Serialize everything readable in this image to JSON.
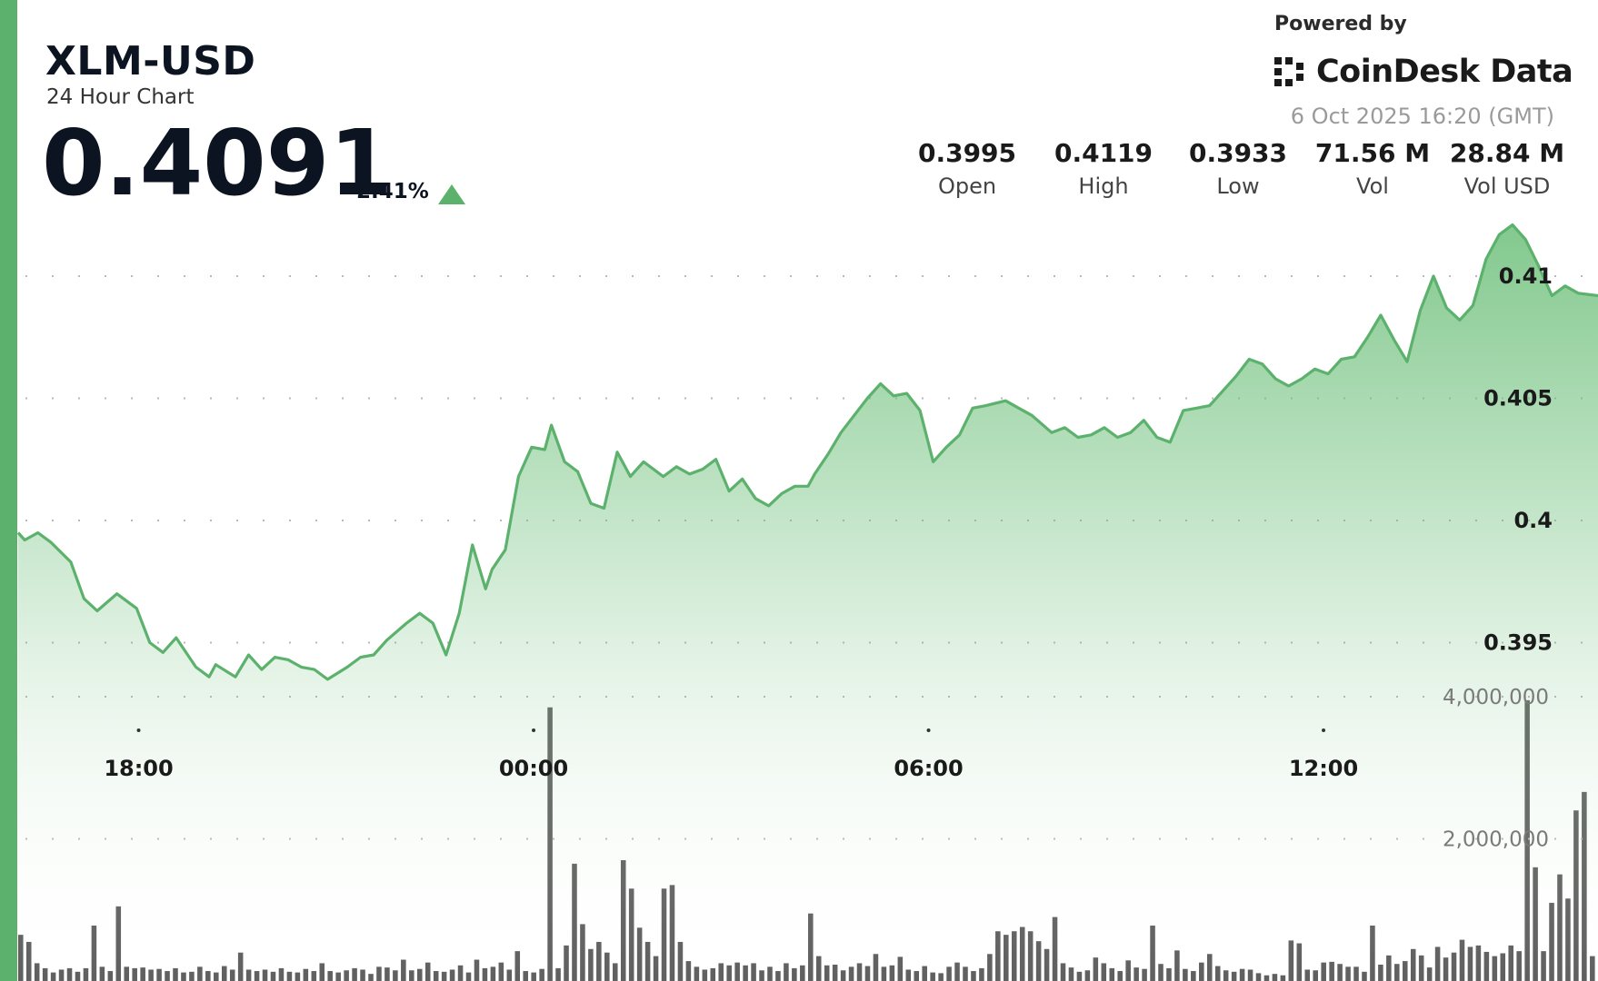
{
  "header": {
    "symbol": "XLM-USD",
    "subtitle": "24 Hour Chart",
    "price": "0.4091",
    "change_pct": "2.41%",
    "change_direction_icon": "triangle-up-icon"
  },
  "branding": {
    "powered_by": "Powered by",
    "name": "CoinDesk Data",
    "logo_icon": "coindesk-logo-icon",
    "timestamp": "6 Oct 2025 16:20 (GMT)"
  },
  "stats": [
    {
      "value": "0.3995",
      "label": "Open"
    },
    {
      "value": "0.4119",
      "label": "High"
    },
    {
      "value": "0.3933",
      "label": "Low"
    },
    {
      "value": "71.56 M",
      "label": "Vol"
    },
    {
      "value": "28.84 M",
      "label": "Vol USD"
    }
  ],
  "colors": {
    "accent": "#5cb16d",
    "line": "#5cb16d",
    "fill_top": "#6dbf7a",
    "volume_bar": "#606060",
    "text": "#0d1421"
  },
  "chart_data": [
    {
      "type": "area",
      "title": "",
      "xlabel": "",
      "ylabel": "",
      "x_tick_labels": [
        "18:00",
        "00:00",
        "06:00",
        "12:00"
      ],
      "x_tick_hours": [
        1.83,
        7.83,
        13.83,
        19.83
      ],
      "y_tick_labels": [
        "0.41",
        "0.405",
        "0.4",
        "0.395"
      ],
      "y_ticks": [
        0.41,
        0.405,
        0.4,
        0.395
      ],
      "ylim": [
        0.3898,
        0.4157
      ],
      "xlim_hours": [
        0,
        24
      ],
      "grid": true,
      "series": [
        {
          "x_hours": [
            0.0,
            0.1,
            0.3,
            0.5,
            0.8,
            1.0,
            1.2,
            1.5,
            1.8,
            2.0,
            2.2,
            2.4,
            2.7,
            2.9,
            3.0,
            3.3,
            3.5,
            3.7,
            3.9,
            4.1,
            4.3,
            4.5,
            4.7,
            5.0,
            5.2,
            5.4,
            5.6,
            5.9,
            6.1,
            6.3,
            6.5,
            6.7,
            6.9,
            7.1,
            7.2,
            7.4,
            7.6,
            7.8,
            8.0,
            8.1,
            8.3,
            8.5,
            8.7,
            8.9,
            9.1,
            9.3,
            9.5,
            9.8,
            10.0,
            10.2,
            10.4,
            10.6,
            10.8,
            11.0,
            11.2,
            11.4,
            11.6,
            11.8,
            12.0,
            12.1,
            12.3,
            12.5,
            12.7,
            12.9,
            13.1,
            13.3,
            13.5,
            13.7,
            13.9,
            14.1,
            14.3,
            14.5,
            14.7,
            15.0,
            15.2,
            15.4,
            15.7,
            15.9,
            16.1,
            16.3,
            16.5,
            16.7,
            16.9,
            17.1,
            17.3,
            17.5,
            17.7,
            17.9,
            18.1,
            18.3,
            18.5,
            18.7,
            18.9,
            19.1,
            19.3,
            19.5,
            19.7,
            19.9,
            20.1,
            20.3,
            20.5,
            20.7,
            20.9,
            21.1,
            21.3,
            21.5,
            21.7,
            21.9,
            22.1,
            22.3,
            22.5,
            22.7,
            22.9,
            23.1,
            23.3,
            23.5,
            23.7,
            24.0
          ],
          "values": [
            0.3995,
            0.3992,
            0.3995,
            0.3991,
            0.3983,
            0.3968,
            0.3963,
            0.397,
            0.3964,
            0.395,
            0.3946,
            0.3952,
            0.394,
            0.3936,
            0.3941,
            0.3936,
            0.3945,
            0.3939,
            0.3944,
            0.3943,
            0.394,
            0.3939,
            0.3935,
            0.394,
            0.3944,
            0.3945,
            0.3951,
            0.3958,
            0.3962,
            0.3958,
            0.3945,
            0.3962,
            0.399,
            0.3972,
            0.398,
            0.3988,
            0.4018,
            0.403,
            0.4029,
            0.4039,
            0.4024,
            0.402,
            0.4007,
            0.4005,
            0.4028,
            0.4018,
            0.4024,
            0.4018,
            0.4022,
            0.4019,
            0.4021,
            0.4025,
            0.4012,
            0.4017,
            0.4009,
            0.4006,
            0.4011,
            0.4014,
            0.4014,
            0.4019,
            0.4027,
            0.4036,
            0.4043,
            0.405,
            0.4056,
            0.4051,
            0.4052,
            0.4045,
            0.4024,
            0.403,
            0.4035,
            0.4046,
            0.4047,
            0.4049,
            0.4046,
            0.4043,
            0.4036,
            0.4038,
            0.4034,
            0.4035,
            0.4038,
            0.4034,
            0.4036,
            0.4041,
            0.4034,
            0.4032,
            0.4045,
            0.4046,
            0.4047,
            0.4053,
            0.4059,
            0.4066,
            0.4064,
            0.4058,
            0.4055,
            0.4058,
            0.4062,
            0.406,
            0.4066,
            0.4067,
            0.4075,
            0.4084,
            0.4074,
            0.4065,
            0.4086,
            0.41,
            0.4087,
            0.4082,
            0.4088,
            0.4107,
            0.4117,
            0.4121,
            0.4115,
            0.4104,
            0.4092,
            0.4096,
            0.4093,
            0.4092
          ]
        }
      ]
    },
    {
      "type": "bar",
      "title": "",
      "y_tick_labels": [
        "4,000,000",
        "2,000,000"
      ],
      "y_ticks": [
        4000000,
        2000000
      ],
      "ylim": [
        0,
        4600000
      ],
      "x_range_hours": [
        0,
        24
      ],
      "values": [
        650000,
        550000,
        250000,
        180000,
        120000,
        160000,
        180000,
        130000,
        180000,
        780000,
        200000,
        140000,
        1050000,
        200000,
        180000,
        190000,
        160000,
        170000,
        140000,
        180000,
        120000,
        130000,
        200000,
        140000,
        120000,
        210000,
        160000,
        400000,
        160000,
        140000,
        160000,
        130000,
        180000,
        130000,
        120000,
        170000,
        140000,
        250000,
        140000,
        120000,
        150000,
        180000,
        160000,
        100000,
        200000,
        190000,
        150000,
        300000,
        150000,
        170000,
        260000,
        140000,
        130000,
        160000,
        220000,
        120000,
        300000,
        180000,
        200000,
        260000,
        160000,
        420000,
        140000,
        120000,
        170000,
        3850000,
        180000,
        500000,
        1650000,
        800000,
        450000,
        550000,
        400000,
        250000,
        1700000,
        1300000,
        750000,
        550000,
        350000,
        1300000,
        1350000,
        550000,
        280000,
        200000,
        160000,
        180000,
        250000,
        220000,
        260000,
        220000,
        250000,
        150000,
        200000,
        140000,
        250000,
        180000,
        220000,
        950000,
        350000,
        220000,
        230000,
        150000,
        200000,
        250000,
        210000,
        380000,
        200000,
        220000,
        340000,
        160000,
        140000,
        210000,
        120000,
        110000,
        200000,
        260000,
        200000,
        140000,
        180000,
        380000,
        700000,
        650000,
        700000,
        760000,
        700000,
        560000,
        450000,
        900000,
        250000,
        190000,
        130000,
        150000,
        330000,
        250000,
        180000,
        140000,
        290000,
        190000,
        170000,
        780000,
        240000,
        180000,
        430000,
        170000,
        140000,
        260000,
        380000,
        210000,
        150000,
        130000,
        170000,
        160000,
        110000,
        80000,
        100000,
        80000,
        570000,
        530000,
        160000,
        150000,
        260000,
        270000,
        240000,
        200000,
        200000,
        130000,
        780000,
        230000,
        360000,
        240000,
        280000,
        450000,
        360000,
        190000,
        480000,
        330000,
        400000,
        580000,
        480000,
        500000,
        410000,
        350000,
        390000,
        500000,
        420000,
        3950000,
        1600000,
        420000,
        1100000,
        1500000,
        1160000,
        2400000,
        2660000,
        350000
      ]
    }
  ]
}
